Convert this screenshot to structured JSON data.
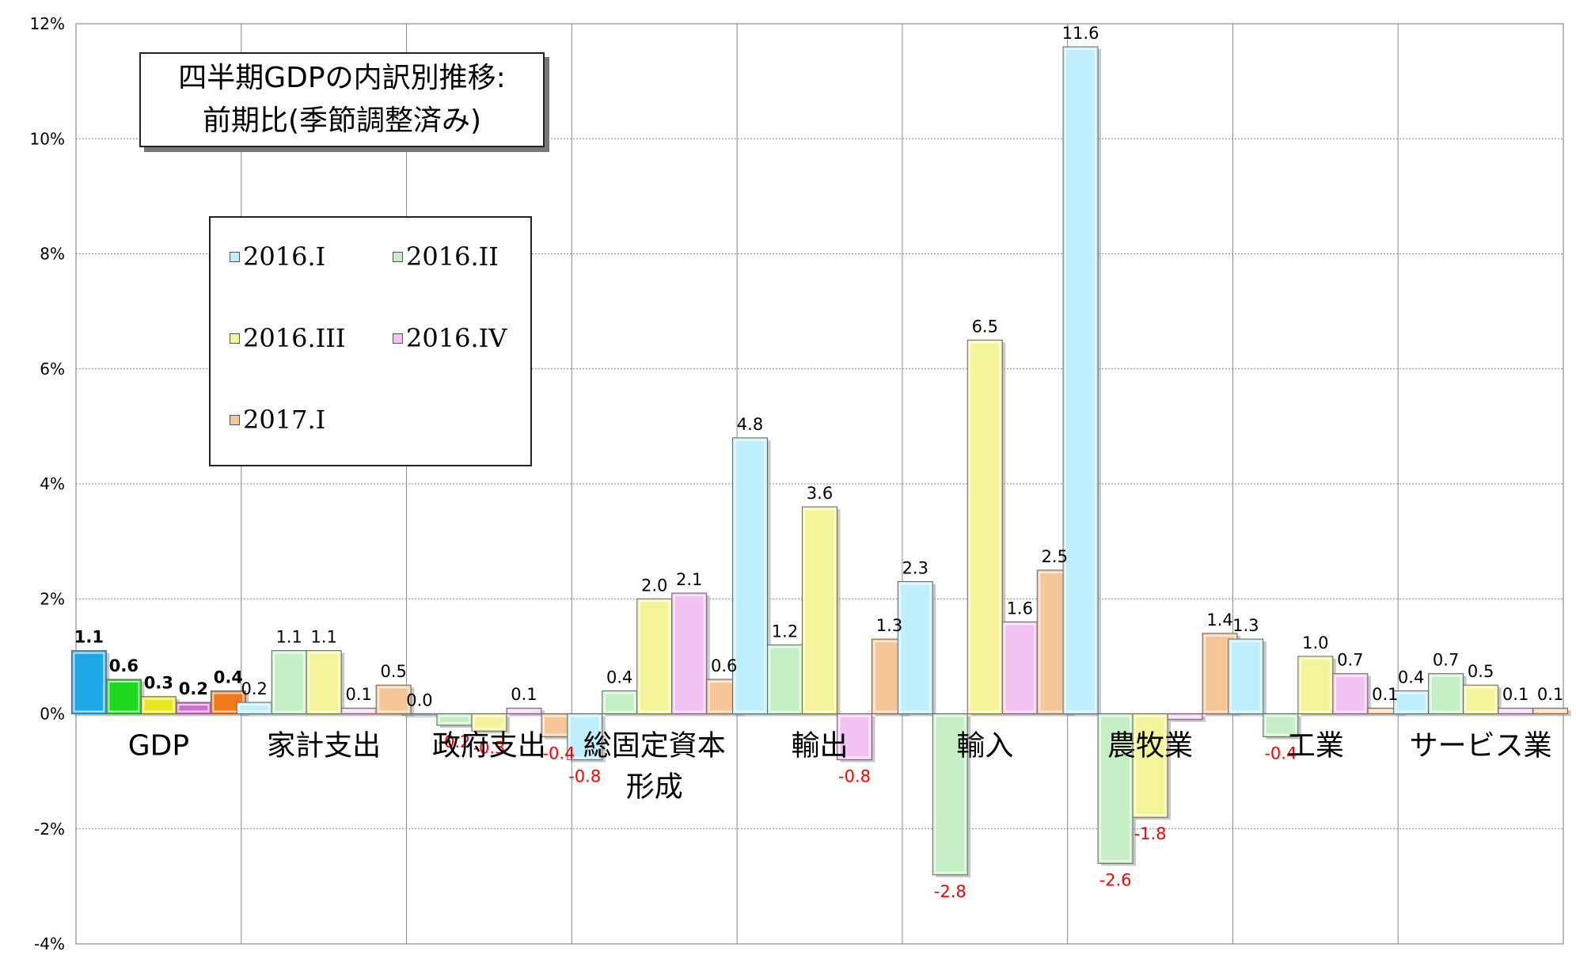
{
  "title_lines": [
    "四半期GDPの内訳別推移:",
    "前期比(季節調整済み)"
  ],
  "colors": {
    "series": [
      "#bfeefc",
      "#c6efc6",
      "#f4f49a",
      "#f2c2f2",
      "#f5c698"
    ],
    "gdp_series": [
      "#1ea8e8",
      "#1ed81e",
      "#e8e81e",
      "#d070d0",
      "#f07a18"
    ],
    "grid": "#888888",
    "negative_label": "#ff0000"
  },
  "chart_data": {
    "type": "bar",
    "title": "四半期GDPの内訳別推移: 前期比(季節調整済み)",
    "xlabel": "",
    "ylabel": "",
    "ylim": [
      -4,
      12
    ],
    "yticks": [
      "12%",
      "10%",
      "8%",
      "6%",
      "4%",
      "2%",
      "0%",
      "-2%",
      "-4%"
    ],
    "ytick_values": [
      12,
      10,
      8,
      6,
      4,
      2,
      0,
      -2,
      -4
    ],
    "grid": true,
    "legend_position": "top-left",
    "categories": [
      "GDP",
      "家計支出",
      "政府支出",
      "総固定資本 形成",
      "輸出",
      "輸入",
      "農牧業",
      "工業",
      "サービス業"
    ],
    "category_lines": [
      [
        "GDP"
      ],
      [
        "家計支出"
      ],
      [
        "政府支出"
      ],
      [
        "総固定資本",
        "形成"
      ],
      [
        "輸出"
      ],
      [
        "輸入"
      ],
      [
        "農牧業"
      ],
      [
        "工業"
      ],
      [
        "サービス業"
      ]
    ],
    "series": [
      {
        "name": "2016.I",
        "values": [
          1.1,
          0.2,
          0.0,
          -0.8,
          4.8,
          2.3,
          11.6,
          1.3,
          0.4
        ],
        "labels": [
          "1.1",
          "0.2",
          "0.0",
          "-0.8",
          "4.8",
          "2.3",
          "11.6",
          "1.3",
          "0.4"
        ]
      },
      {
        "name": "2016.II",
        "values": [
          0.6,
          1.1,
          -0.2,
          0.4,
          1.2,
          -2.8,
          -2.6,
          -0.4,
          0.7
        ],
        "labels": [
          "0.6",
          "1.1",
          "-0.2",
          "0.4",
          "1.2",
          "-2.8",
          "-2.6",
          "-0.4",
          "0.7"
        ]
      },
      {
        "name": "2016.III",
        "values": [
          0.3,
          1.1,
          -0.3,
          2.0,
          3.6,
          6.5,
          -1.8,
          1.0,
          0.5
        ],
        "labels": [
          "0.3",
          "1.1",
          "-0.3",
          "2.0",
          "3.6",
          "6.5",
          "-1.8",
          "1.0",
          "0.5"
        ]
      },
      {
        "name": "2016.IV",
        "values": [
          0.2,
          0.1,
          0.1,
          2.1,
          -0.8,
          1.6,
          -0.1,
          0.7,
          0.1
        ],
        "labels": [
          "0.2",
          "0.1",
          "0.1",
          "2.1",
          "-0.8",
          "1.6",
          "",
          "0.7",
          "0.1"
        ]
      },
      {
        "name": "2017.I",
        "values": [
          0.4,
          0.5,
          -0.4,
          0.6,
          1.3,
          2.5,
          1.4,
          0.1,
          0.1
        ],
        "labels": [
          "0.4",
          "0.5",
          "-0.4",
          "0.6",
          "1.3",
          "2.5",
          "1.4",
          "0.1",
          "0.1"
        ]
      }
    ]
  }
}
